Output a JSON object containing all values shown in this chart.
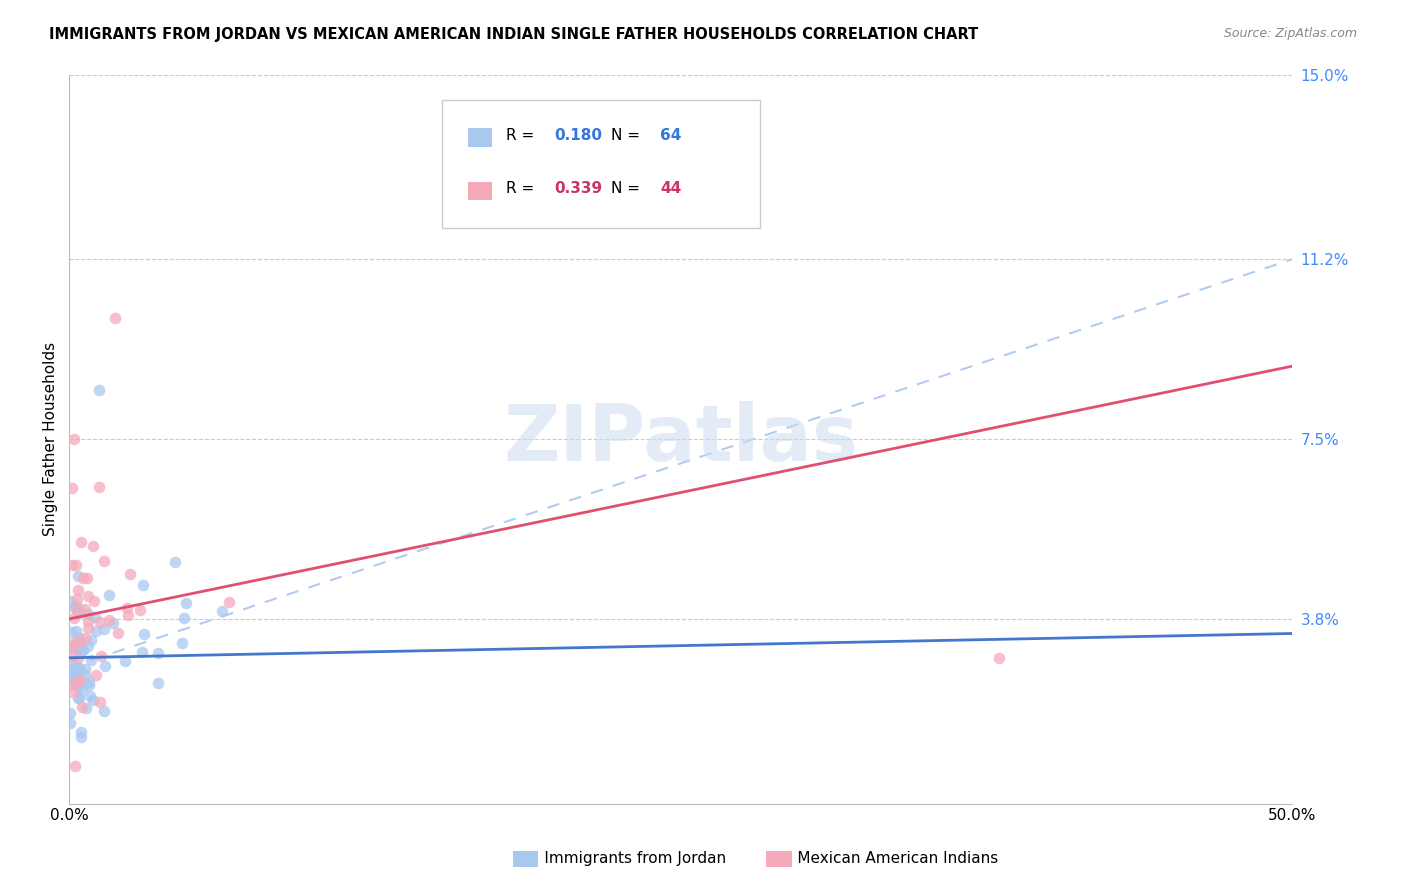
{
  "title": "IMMIGRANTS FROM JORDAN VS MEXICAN AMERICAN INDIAN SINGLE FATHER HOUSEHOLDS CORRELATION CHART",
  "source": "Source: ZipAtlas.com",
  "ylabel": "Single Father Households",
  "xlim": [
    0.0,
    0.5
  ],
  "ylim": [
    0.0,
    0.15
  ],
  "xtick_positions": [
    0.0,
    0.1,
    0.2,
    0.3,
    0.4,
    0.5
  ],
  "xtick_labels": [
    "0.0%",
    "",
    "",
    "",
    "",
    "50.0%"
  ],
  "ytick_vals": [
    0.0,
    0.038,
    0.075,
    0.112,
    0.15
  ],
  "ytick_labels": [
    "",
    "3.8%",
    "7.5%",
    "11.2%",
    "15.0%"
  ],
  "blue_R": "0.180",
  "blue_N": "64",
  "pink_R": "0.339",
  "pink_N": "44",
  "blue_color": "#a8c8f0",
  "blue_line_color": "#4477cc",
  "pink_color": "#f5aabb",
  "pink_line_color": "#e05070",
  "dashed_color": "#b0ccee",
  "watermark": "ZIPatlas",
  "legend1_label": "Immigrants from Jordan",
  "legend2_label": "Mexican American Indians",
  "blue_line_y0": 0.03,
  "blue_line_y1": 0.035,
  "pink_line_y0": 0.038,
  "pink_line_y1": 0.09,
  "dash_line_y0": 0.028,
  "dash_line_y1": 0.112
}
